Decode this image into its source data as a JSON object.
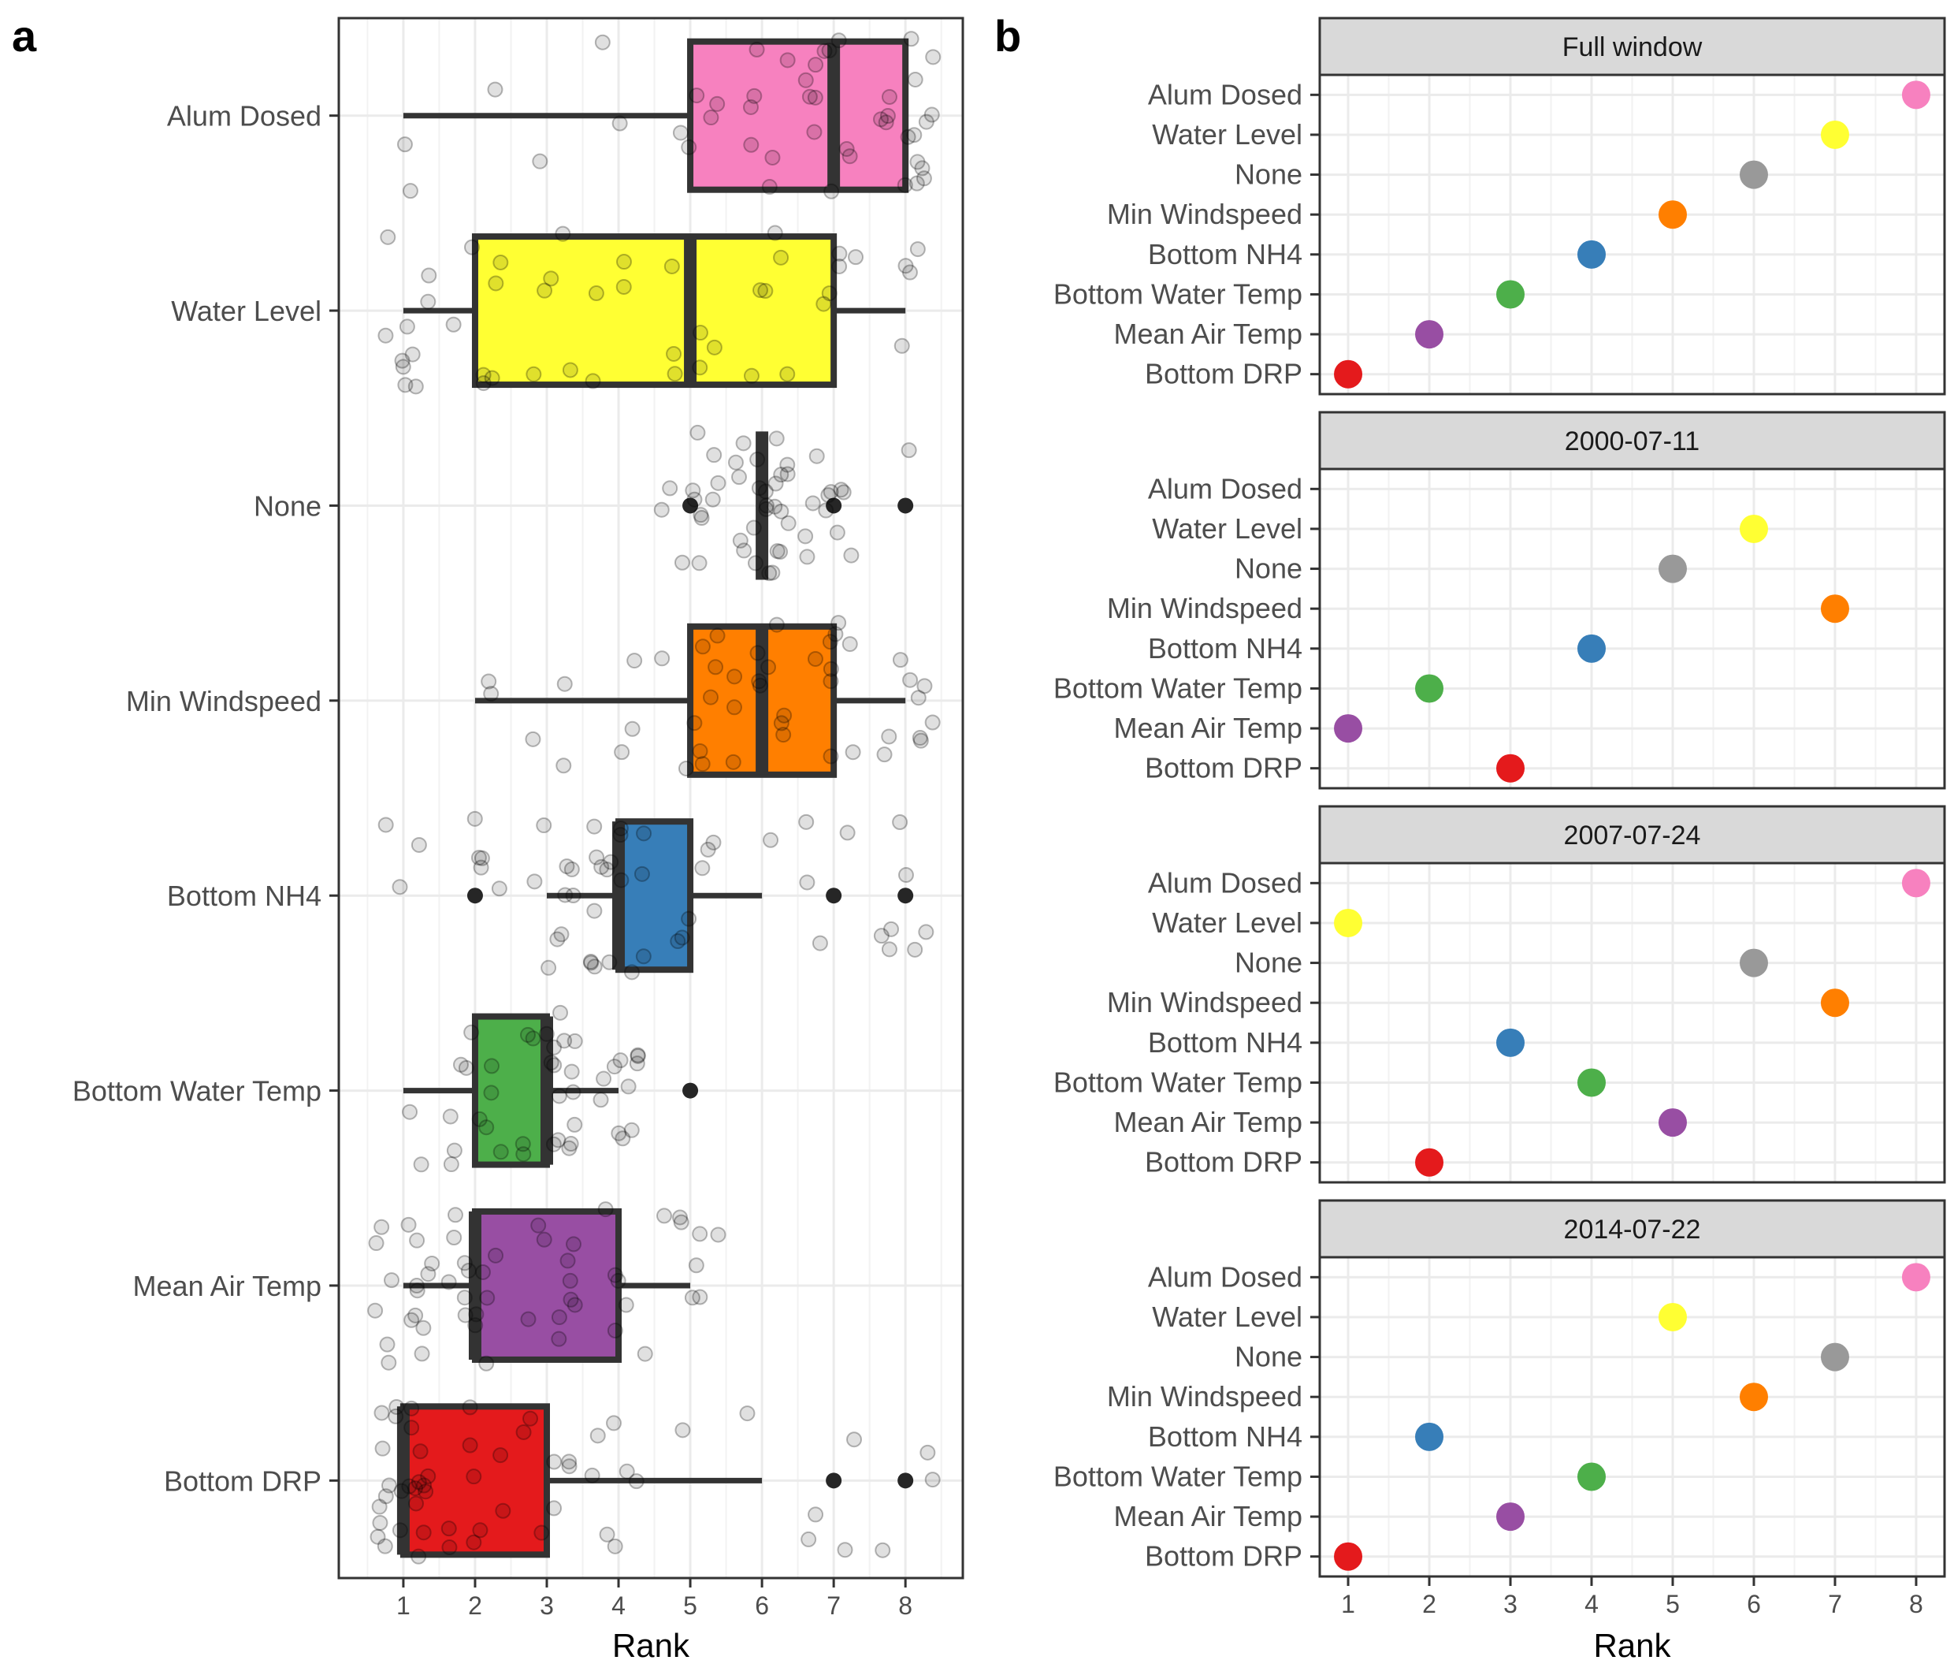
{
  "panel_labels": {
    "a": "a",
    "b": "b"
  },
  "chart_data": [
    {
      "type": "box",
      "panel": "a",
      "title": "",
      "xlabel": "Rank",
      "ylabel": "",
      "xlim": [
        0.1,
        8.8
      ],
      "x_ticks": [
        1,
        2,
        3,
        4,
        5,
        6,
        7,
        8
      ],
      "grid": true,
      "categories": [
        "Alum Dosed",
        "Water Level",
        "None",
        "Min Windspeed",
        "Bottom NH4",
        "Bottom Water Temp",
        "Mean Air Temp",
        "Bottom DRP"
      ],
      "colors": [
        "#f781bf",
        "#ffff33",
        "#999999",
        "#ff7f00",
        "#377eb8",
        "#4daf4a",
        "#984ea3",
        "#e41a1c"
      ],
      "boxes": [
        {
          "name": "Alum Dosed",
          "whisker_low": 1,
          "q1": 5,
          "median": 7,
          "q3": 8,
          "whisker_high": 8,
          "outliers": []
        },
        {
          "name": "Water Level",
          "whisker_low": 1,
          "q1": 2,
          "median": 5,
          "q3": 7,
          "whisker_high": 8,
          "outliers": []
        },
        {
          "name": "None",
          "whisker_low": 6,
          "q1": 6,
          "median": 6,
          "q3": 6,
          "whisker_high": 6,
          "outliers": [
            5,
            7,
            8
          ]
        },
        {
          "name": "Min Windspeed",
          "whisker_low": 2,
          "q1": 5,
          "median": 6,
          "q3": 7,
          "whisker_high": 8,
          "outliers": []
        },
        {
          "name": "Bottom NH4",
          "whisker_low": 3,
          "q1": 4,
          "median": 4,
          "q3": 5,
          "whisker_high": 6,
          "outliers": [
            2,
            7,
            8
          ]
        },
        {
          "name": "Bottom Water Temp",
          "whisker_low": 1,
          "q1": 2,
          "median": 3,
          "q3": 3,
          "whisker_high": 4,
          "outliers": [
            5
          ]
        },
        {
          "name": "Mean Air Temp",
          "whisker_low": 1,
          "q1": 2,
          "median": 2,
          "q3": 4,
          "whisker_high": 5,
          "outliers": []
        },
        {
          "name": "Bottom DRP",
          "whisker_low": 1,
          "q1": 1,
          "median": 1,
          "q3": 3,
          "whisker_high": 6,
          "outliers": [
            7,
            8
          ]
        }
      ],
      "jitter_points": [
        {
          "name": "Alum Dosed",
          "ranks": [
            1,
            1,
            2,
            3,
            4,
            4,
            5,
            5,
            5,
            5,
            5,
            6,
            6,
            6,
            6,
            6,
            6,
            6,
            7,
            7,
            7,
            7,
            7,
            7,
            7,
            7,
            7,
            7,
            7,
            8,
            8,
            8,
            8,
            8,
            8,
            8,
            8,
            8,
            8,
            8,
            8,
            8,
            8,
            8,
            8
          ]
        },
        {
          "name": "Water Level",
          "ranks": [
            1,
            1,
            1,
            1,
            1,
            1,
            1,
            1,
            1,
            1,
            2,
            2,
            2,
            2,
            2,
            2,
            2,
            3,
            3,
            3,
            3,
            3,
            4,
            4,
            4,
            4,
            5,
            5,
            5,
            5,
            5,
            5,
            6,
            6,
            6,
            6,
            6,
            6,
            7,
            7,
            7,
            7,
            7,
            8,
            8,
            8,
            8
          ]
        },
        {
          "name": "None",
          "ranks": [
            5,
            5,
            5,
            5,
            5,
            5,
            5,
            5,
            5,
            5,
            5,
            5,
            6,
            6,
            6,
            6,
            6,
            6,
            6,
            6,
            6,
            6,
            6,
            6,
            6,
            6,
            6,
            6,
            6,
            6,
            6,
            6,
            6,
            6,
            6,
            6,
            7,
            7,
            7,
            7,
            7,
            7,
            7,
            7,
            7,
            7,
            7,
            8
          ]
        },
        {
          "name": "Min Windspeed",
          "ranks": [
            2,
            2,
            3,
            3,
            3,
            4,
            4,
            4,
            5,
            5,
            5,
            5,
            5,
            5,
            5,
            5,
            5,
            6,
            6,
            6,
            6,
            6,
            6,
            6,
            6,
            6,
            6,
            6,
            7,
            7,
            7,
            7,
            7,
            7,
            7,
            7,
            7,
            8,
            8,
            8,
            8,
            8,
            8,
            8,
            8,
            8
          ]
        },
        {
          "name": "Bottom NH4",
          "ranks": [
            1,
            1,
            1,
            2,
            2,
            2,
            2,
            2,
            3,
            3,
            3,
            3,
            3,
            3,
            3,
            3,
            3,
            4,
            4,
            4,
            4,
            4,
            4,
            4,
            4,
            4,
            4,
            4,
            4,
            4,
            4,
            4,
            4,
            4,
            5,
            5,
            5,
            5,
            5,
            5,
            6,
            7,
            7,
            7,
            7,
            8,
            8,
            8,
            8,
            8,
            8,
            8
          ]
        },
        {
          "name": "Bottom Water Temp",
          "ranks": [
            1,
            1,
            2,
            2,
            2,
            2,
            2,
            2,
            2,
            2,
            2,
            2,
            2,
            3,
            3,
            3,
            3,
            3,
            3,
            3,
            3,
            3,
            3,
            3,
            3,
            3,
            3,
            3,
            3,
            3,
            3,
            3,
            4,
            4,
            4,
            4,
            4,
            4,
            4,
            4,
            4,
            4,
            4
          ]
        },
        {
          "name": "Mean Air Temp",
          "ranks": [
            1,
            1,
            1,
            1,
            1,
            1,
            1,
            1,
            1,
            1,
            1,
            1,
            1,
            1,
            1,
            1,
            2,
            2,
            2,
            2,
            2,
            2,
            2,
            2,
            2,
            2,
            2,
            2,
            2,
            3,
            3,
            3,
            3,
            3,
            3,
            3,
            3,
            3,
            3,
            4,
            4,
            4,
            4,
            4,
            4,
            5,
            5,
            5,
            5,
            5,
            5,
            5,
            5
          ]
        },
        {
          "name": "Bottom DRP",
          "ranks": [
            1,
            1,
            1,
            1,
            1,
            1,
            1,
            1,
            1,
            1,
            1,
            1,
            1,
            1,
            1,
            1,
            1,
            1,
            1,
            1,
            1,
            1,
            1,
            1,
            2,
            2,
            2,
            2,
            2,
            2,
            2,
            2,
            2,
            3,
            3,
            3,
            3,
            3,
            3,
            3,
            4,
            4,
            4,
            4,
            4,
            4,
            4,
            5,
            6,
            7,
            7,
            7,
            7,
            8,
            8,
            8
          ]
        }
      ]
    },
    {
      "type": "scatter",
      "panel": "b",
      "title": "",
      "xlabel": "Rank",
      "ylabel": "",
      "xlim": [
        0.65,
        8.35
      ],
      "x_ticks": [
        1,
        2,
        3,
        4,
        5,
        6,
        7,
        8
      ],
      "grid": true,
      "categories": [
        "Alum Dosed",
        "Water Level",
        "None",
        "Min Windspeed",
        "Bottom NH4",
        "Bottom Water Temp",
        "Mean Air Temp",
        "Bottom DRP"
      ],
      "colors": [
        "#f781bf",
        "#ffff33",
        "#999999",
        "#ff7f00",
        "#377eb8",
        "#4daf4a",
        "#984ea3",
        "#e41a1c"
      ],
      "facets": [
        {
          "label": "Full window",
          "ranks": [
            8,
            7,
            6,
            5,
            4,
            3,
            2,
            1
          ]
        },
        {
          "label": "2000-07-11",
          "ranks": [
            null,
            6,
            5,
            7,
            4,
            2,
            1,
            3
          ]
        },
        {
          "label": "2007-07-24",
          "ranks": [
            8,
            1,
            6,
            7,
            3,
            4,
            5,
            2
          ]
        },
        {
          "label": "2014-07-22",
          "ranks": [
            8,
            5,
            7,
            6,
            2,
            4,
            3,
            1
          ]
        }
      ]
    }
  ]
}
